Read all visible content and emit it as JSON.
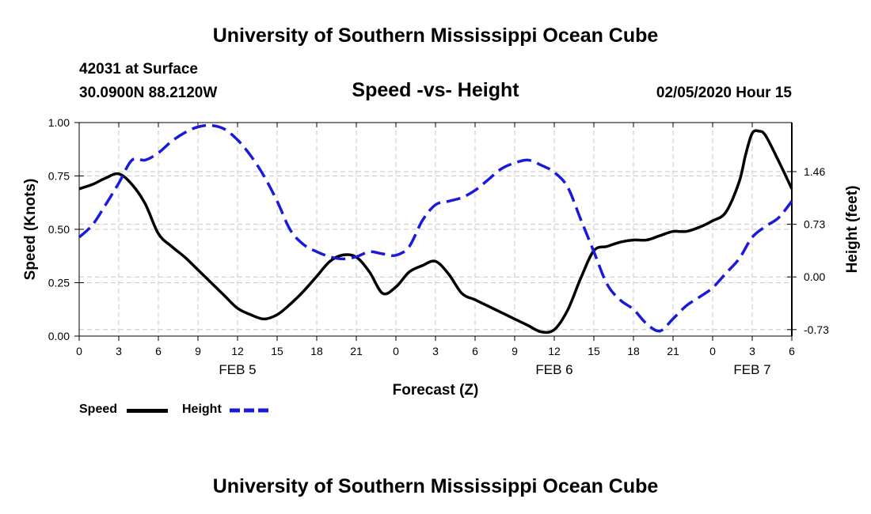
{
  "page": {
    "title_top": "University of Southern Mississippi Ocean Cube",
    "title_bottom": "University of Southern Mississippi Ocean Cube",
    "station_line1": "42031 at Surface",
    "station_line2": "30.0900N 88.2120W",
    "chart_title": "Speed -vs- Height",
    "run_time": "02/05/2020 Hour 15",
    "legend": [
      {
        "label": "Speed",
        "color": "#000000",
        "style": "solid"
      },
      {
        "label": "Height",
        "color": "#1a1adb",
        "style": "dashed"
      }
    ]
  },
  "chart_data": {
    "type": "line",
    "title": "Speed -vs- Height",
    "xlabel": "Forecast (Z)",
    "ylabel": "Speed (Knots)",
    "y2label": "Height (feet)",
    "xlim": [
      0,
      54
    ],
    "ylim": [
      0,
      1
    ],
    "y2lim": [
      -0.82,
      2.14
    ],
    "grid": true,
    "legend_position": "bottom-left",
    "x_ticks": [
      0,
      3,
      6,
      9,
      12,
      15,
      18,
      21,
      24,
      27,
      30,
      33,
      36,
      39,
      42,
      45,
      48,
      51,
      54
    ],
    "x_tick_labels": [
      "0",
      "3",
      "6",
      "9",
      "12",
      "15",
      "18",
      "21",
      "0",
      "3",
      "6",
      "9",
      "12",
      "15",
      "18",
      "21",
      "0",
      "3",
      "6"
    ],
    "day_labels": [
      {
        "x": 12,
        "label": "FEB 5"
      },
      {
        "x": 36,
        "label": "FEB 6"
      },
      {
        "x": 51,
        "label": "FEB 7"
      }
    ],
    "y_ticks": [
      0.0,
      0.25,
      0.5,
      0.75,
      1.0
    ],
    "y_tick_labels": [
      "0.00",
      "0.25",
      "0.50",
      "0.75",
      "1.00"
    ],
    "y2_ticks": [
      -0.73,
      0.0,
      0.73,
      1.46
    ],
    "y2_tick_labels": [
      "-0.73",
      "0.00",
      "0.73",
      "1.46"
    ],
    "series": [
      {
        "name": "Speed",
        "axis": "left",
        "color": "#000000",
        "dash": false,
        "x": [
          0,
          1,
          2,
          3,
          4,
          5,
          6,
          7,
          8,
          9,
          10,
          11,
          12,
          13,
          14,
          15,
          16,
          17,
          18,
          19,
          20,
          21,
          22,
          23,
          24,
          25,
          26,
          27,
          28,
          29,
          30,
          31,
          32,
          33,
          34,
          35,
          36,
          37,
          38,
          39,
          40,
          41,
          42,
          43,
          44,
          45,
          46,
          47,
          48,
          49,
          50,
          50.5,
          51,
          51.5,
          52,
          53,
          54
        ],
        "values": [
          0.69,
          0.71,
          0.74,
          0.76,
          0.71,
          0.62,
          0.48,
          0.42,
          0.37,
          0.31,
          0.25,
          0.19,
          0.13,
          0.1,
          0.08,
          0.1,
          0.15,
          0.21,
          0.28,
          0.35,
          0.38,
          0.37,
          0.3,
          0.2,
          0.23,
          0.3,
          0.33,
          0.35,
          0.29,
          0.2,
          0.17,
          0.14,
          0.11,
          0.08,
          0.05,
          0.02,
          0.03,
          0.12,
          0.27,
          0.4,
          0.42,
          0.44,
          0.45,
          0.45,
          0.47,
          0.49,
          0.49,
          0.51,
          0.54,
          0.58,
          0.72,
          0.85,
          0.95,
          0.96,
          0.94,
          0.82,
          0.69
        ]
      },
      {
        "name": "Height",
        "axis": "right",
        "color": "#1a1adb",
        "dash": true,
        "x": [
          0,
          1,
          2,
          3,
          4,
          5,
          6,
          7,
          8,
          9,
          10,
          11,
          12,
          13,
          14,
          15,
          16,
          17,
          18,
          19,
          20,
          21,
          22,
          23,
          24,
          25,
          26,
          27,
          28,
          29,
          30,
          31,
          32,
          33,
          34,
          35,
          36,
          37,
          38,
          39,
          40,
          41,
          42,
          43,
          44,
          45,
          46,
          47,
          48,
          49,
          50,
          51,
          52,
          53,
          54
        ],
        "values": [
          0.55,
          0.72,
          1.0,
          1.3,
          1.62,
          1.62,
          1.72,
          1.88,
          2.0,
          2.08,
          2.1,
          2.05,
          1.9,
          1.68,
          1.4,
          1.05,
          0.65,
          0.45,
          0.35,
          0.28,
          0.25,
          0.28,
          0.35,
          0.32,
          0.3,
          0.42,
          0.78,
          1.0,
          1.05,
          1.1,
          1.2,
          1.35,
          1.5,
          1.58,
          1.62,
          1.55,
          1.45,
          1.25,
          0.8,
          0.35,
          -0.1,
          -0.32,
          -0.45,
          -0.65,
          -0.75,
          -0.58,
          -0.4,
          -0.28,
          -0.15,
          0.05,
          0.25,
          0.55,
          0.7,
          0.82,
          1.05
        ]
      }
    ]
  }
}
